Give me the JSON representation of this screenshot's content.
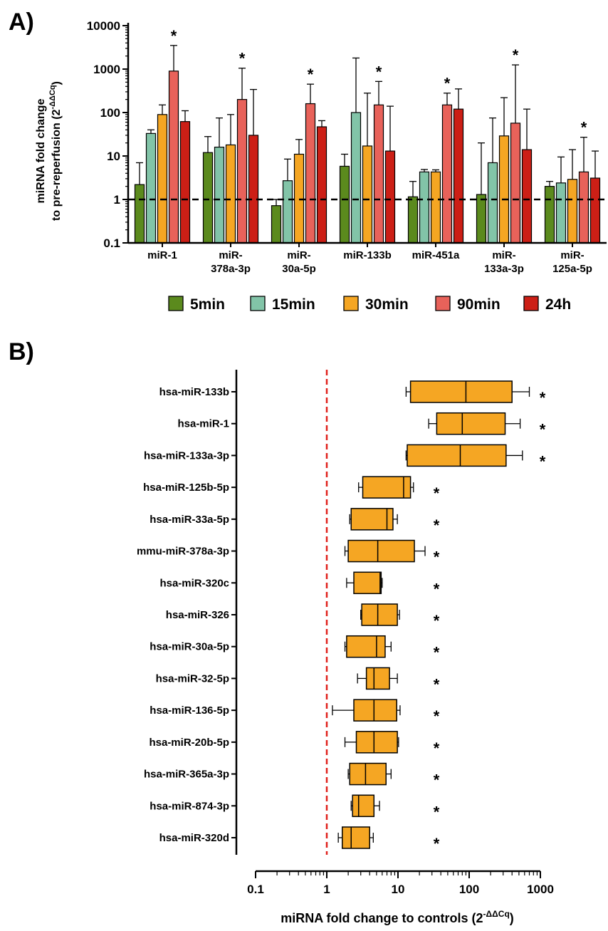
{
  "chart_data": [
    {
      "panel_label": "A)",
      "type": "bar",
      "ylabel_line1": "miRNA fold change",
      "ylabel_line2": "to pre-reperfusion (2",
      "ylabel_sup": "-ΔΔCq",
      "ylabel_close": ")",
      "scale": "log",
      "ylim": [
        0.1,
        10000
      ],
      "yticks": [
        "0.1",
        "1",
        "10",
        "100",
        "1000",
        "10000"
      ],
      "reference_line": 1,
      "categories": [
        [
          "miR-1"
        ],
        [
          "miR-",
          "378a-3p"
        ],
        [
          "miR-",
          "30a-5p"
        ],
        [
          "miR-133b"
        ],
        [
          "miR-451a"
        ],
        [
          "miR-",
          "133a-3p"
        ],
        [
          "miR-",
          "125a-5p"
        ]
      ],
      "series": [
        {
          "name": "5min",
          "color": "#5b8a1d",
          "values": [
            2.2,
            12,
            0.72,
            5.8,
            1.15,
            1.3,
            2.0
          ],
          "errors": [
            7,
            28,
            1.0,
            11,
            2.6,
            20,
            2.6
          ]
        },
        {
          "name": "15min",
          "color": "#82c4a8",
          "values": [
            33,
            16,
            2.7,
            100,
            4.3,
            7.0,
            2.4
          ],
          "errors": [
            40,
            75,
            8.5,
            1800,
            4.9,
            75,
            9.5
          ]
        },
        {
          "name": "30min",
          "color": "#f5a623",
          "values": [
            90,
            18,
            11,
            17,
            4.3,
            29,
            2.9
          ],
          "errors": [
            150,
            90,
            24,
            280,
            4.8,
            220,
            14
          ]
        },
        {
          "name": "90min",
          "color": "#e8625a",
          "values": [
            900,
            200,
            160,
            150,
            150,
            57,
            4.3
          ],
          "errors": [
            3500,
            1050,
            450,
            520,
            280,
            1250,
            27
          ]
        },
        {
          "name": "24h",
          "color": "#cc1f16",
          "values": [
            62,
            30,
            47,
            13,
            120,
            14,
            3.1
          ],
          "errors": [
            110,
            340,
            65,
            140,
            350,
            120,
            13
          ]
        }
      ],
      "significance": [
        "*",
        "*",
        "*",
        "*",
        "*",
        "*",
        "*"
      ],
      "legend_position": "bottom"
    },
    {
      "panel_label": "B)",
      "type": "box",
      "orientation": "horizontal",
      "xlabel": "miRNA fold change to controls (2",
      "xlabel_sup": "-ΔΔCq",
      "xlabel_close": ")",
      "scale": "log",
      "xlim": [
        0.1,
        1000
      ],
      "xticks": [
        "0.1",
        "1",
        "10",
        "100",
        "1000"
      ],
      "reference_line": 1,
      "box_color": "#f5a623",
      "rows": [
        {
          "label": "hsa-miR-133b",
          "min": 13,
          "q1": 15,
          "median": 90,
          "q3": 400,
          "max": 700,
          "sig": "*"
        },
        {
          "label": "hsa-miR-1",
          "min": 27,
          "q1": 35,
          "median": 80,
          "q3": 320,
          "max": 520,
          "sig": "*"
        },
        {
          "label": "hsa-miR-133a-3p",
          "min": 13,
          "q1": 13.5,
          "median": 75,
          "q3": 330,
          "max": 560,
          "sig": "*"
        },
        {
          "label": "hsa-miR-125b-5p",
          "min": 2.8,
          "q1": 3.2,
          "median": 12,
          "q3": 15,
          "max": 16.5,
          "sig": "*"
        },
        {
          "label": "hsa-miR-33a-5p",
          "min": 2.1,
          "q1": 2.2,
          "median": 7,
          "q3": 8.5,
          "max": 9.8,
          "sig": "*"
        },
        {
          "label": "mmu-miR-378a-3p",
          "min": 1.8,
          "q1": 2.0,
          "median": 5.2,
          "q3": 17,
          "max": 24,
          "sig": "*"
        },
        {
          "label": "hsa-miR-320c",
          "min": 1.9,
          "q1": 2.4,
          "median": 5.6,
          "q3": 5.8,
          "max": 6.0,
          "sig": "*"
        },
        {
          "label": "hsa-miR-326",
          "min": 3.0,
          "q1": 3.1,
          "median": 5.2,
          "q3": 9.8,
          "max": 10.5,
          "sig": "*"
        },
        {
          "label": "hsa-miR-30a-5p",
          "min": 1.8,
          "q1": 1.9,
          "median": 5.0,
          "q3": 6.6,
          "max": 8.0,
          "sig": "*"
        },
        {
          "label": "hsa-miR-32-5p",
          "min": 2.7,
          "q1": 3.6,
          "median": 4.6,
          "q3": 7.6,
          "max": 9.8,
          "sig": "*"
        },
        {
          "label": "hsa-miR-136-5p",
          "min": 1.2,
          "q1": 2.4,
          "median": 4.6,
          "q3": 9.6,
          "max": 10.7,
          "sig": "*"
        },
        {
          "label": "hsa-miR-20b-5p",
          "min": 1.8,
          "q1": 2.6,
          "median": 4.6,
          "q3": 9.8,
          "max": 10.2,
          "sig": "*"
        },
        {
          "label": "hsa-miR-365a-3p",
          "min": 2.0,
          "q1": 2.1,
          "median": 3.5,
          "q3": 6.8,
          "max": 8.0,
          "sig": "*"
        },
        {
          "label": "hsa-miR-874-3p",
          "min": 2.2,
          "q1": 2.3,
          "median": 2.8,
          "q3": 4.6,
          "max": 5.5,
          "sig": "*"
        },
        {
          "label": "hsa-miR-320d",
          "min": 1.45,
          "q1": 1.65,
          "median": 2.2,
          "q3": 4.0,
          "max": 4.5,
          "sig": "*"
        }
      ]
    }
  ]
}
